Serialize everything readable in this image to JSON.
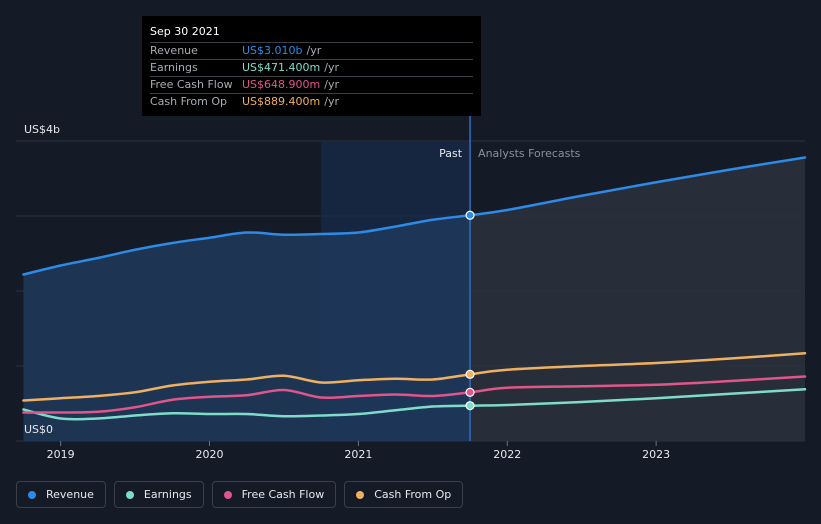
{
  "tooltip": {
    "date": "Sep 30 2021",
    "rows": [
      {
        "label": "Revenue",
        "value": "US$3.010b",
        "unit": "/yr",
        "color": "#2d8ae6"
      },
      {
        "label": "Earnings",
        "value": "US$471.400m",
        "unit": "/yr",
        "color": "#7fdccb"
      },
      {
        "label": "Free Cash Flow",
        "value": "US$648.900m",
        "unit": "/yr",
        "color": "#e0558a"
      },
      {
        "label": "Cash From Op",
        "value": "US$889.400m",
        "unit": "/yr",
        "color": "#f0b062"
      }
    ]
  },
  "legend": [
    {
      "label": "Revenue",
      "color": "#2d8ae6"
    },
    {
      "label": "Earnings",
      "color": "#7fdccb"
    },
    {
      "label": "Free Cash Flow",
      "color": "#e0558a"
    },
    {
      "label": "Cash From Op",
      "color": "#f0b062"
    }
  ],
  "chart_data": {
    "type": "line",
    "ylabel_top": "US$4b",
    "ylabel_bottom": "US$0",
    "ylim": [
      0,
      4
    ],
    "xlim": [
      2018.7,
      2024.0
    ],
    "x_ticks": [
      2019,
      2020,
      2021,
      2022,
      2023
    ],
    "x_tick_labels": [
      "2019",
      "2020",
      "2021",
      "2022",
      "2023"
    ],
    "past_label": "Past",
    "forecast_label": "Analysts Forecasts",
    "divider_x": 2021.75,
    "highlight_start_x": 2020.75,
    "grid": true,
    "series": [
      {
        "name": "Revenue",
        "color": "#2d8ae6",
        "x": [
          2018.75,
          2019.0,
          2019.25,
          2019.5,
          2019.75,
          2020.0,
          2020.25,
          2020.5,
          2020.75,
          2021.0,
          2021.25,
          2021.5,
          2021.75,
          2022.0,
          2022.5,
          2023.0,
          2023.5,
          2024.0
        ],
        "y": [
          2.22,
          2.34,
          2.44,
          2.55,
          2.64,
          2.71,
          2.78,
          2.75,
          2.76,
          2.78,
          2.86,
          2.95,
          3.01,
          3.08,
          3.27,
          3.45,
          3.62,
          3.78
        ]
      },
      {
        "name": "Earnings",
        "color": "#7fdccb",
        "x": [
          2018.75,
          2019.0,
          2019.25,
          2019.5,
          2019.75,
          2020.0,
          2020.25,
          2020.5,
          2020.75,
          2021.0,
          2021.25,
          2021.5,
          2021.75,
          2022.0,
          2022.5,
          2023.0,
          2023.5,
          2024.0
        ],
        "y": [
          0.42,
          0.3,
          0.3,
          0.34,
          0.37,
          0.36,
          0.36,
          0.33,
          0.34,
          0.36,
          0.41,
          0.46,
          0.471,
          0.48,
          0.52,
          0.57,
          0.63,
          0.69
        ]
      },
      {
        "name": "Free Cash Flow",
        "color": "#e0558a",
        "x": [
          2018.75,
          2019.0,
          2019.25,
          2019.5,
          2019.75,
          2020.0,
          2020.25,
          2020.5,
          2020.75,
          2021.0,
          2021.25,
          2021.5,
          2021.75,
          2022.0,
          2022.5,
          2023.0,
          2023.5,
          2024.0
        ],
        "y": [
          0.38,
          0.38,
          0.39,
          0.45,
          0.55,
          0.59,
          0.61,
          0.68,
          0.58,
          0.6,
          0.62,
          0.6,
          0.649,
          0.71,
          0.73,
          0.75,
          0.8,
          0.86
        ]
      },
      {
        "name": "Cash From Op",
        "color": "#f0b062",
        "x": [
          2018.75,
          2019.0,
          2019.25,
          2019.5,
          2019.75,
          2020.0,
          2020.25,
          2020.5,
          2020.75,
          2021.0,
          2021.25,
          2021.5,
          2021.75,
          2022.0,
          2022.5,
          2023.0,
          2023.5,
          2024.0
        ],
        "y": [
          0.54,
          0.57,
          0.6,
          0.65,
          0.74,
          0.79,
          0.82,
          0.87,
          0.78,
          0.81,
          0.83,
          0.82,
          0.889,
          0.95,
          1.0,
          1.04,
          1.1,
          1.17
        ]
      }
    ]
  }
}
